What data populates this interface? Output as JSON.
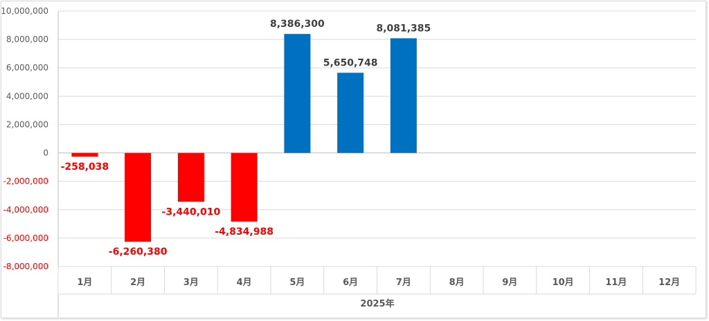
{
  "chart_data": {
    "type": "bar",
    "title": "",
    "xlabel": "2025年",
    "ylabel": "",
    "ylim": [
      -8000000,
      10000000
    ],
    "ytick_values": [
      10000000,
      8000000,
      6000000,
      4000000,
      2000000,
      0,
      -2000000,
      -4000000,
      -6000000,
      -8000000
    ],
    "ytick_labels": [
      "10,000,000",
      "8,000,000",
      "6,000,000",
      "4,000,000",
      "2,000,000",
      "0",
      "-2,000,000",
      "-4,000,000",
      "-6,000,000",
      "-8,000,000"
    ],
    "categories": [
      "1月",
      "2月",
      "3月",
      "4月",
      "5月",
      "6月",
      "7月",
      "8月",
      "9月",
      "10月",
      "11月",
      "12月"
    ],
    "values": [
      -258038,
      -6260380,
      -3440010,
      -4834988,
      8386300,
      5650748,
      8081385,
      null,
      null,
      null,
      null,
      null
    ],
    "value_labels": [
      "-258,038",
      "-6,260,380",
      "-3,440,010",
      "-4,834,988",
      "8,386,300",
      "5,650,748",
      "8,081,385",
      "",
      "",
      "",
      "",
      ""
    ],
    "grid": true,
    "legend": "none",
    "colors": {
      "positive": "#0070C0",
      "negative": "#FF0000",
      "grid": "#d9d9d9",
      "axis": "#bfbfbf",
      "tick_text": "#595959",
      "negative_tick_text": "#FF0000",
      "positive_label_text": "#404040"
    }
  }
}
